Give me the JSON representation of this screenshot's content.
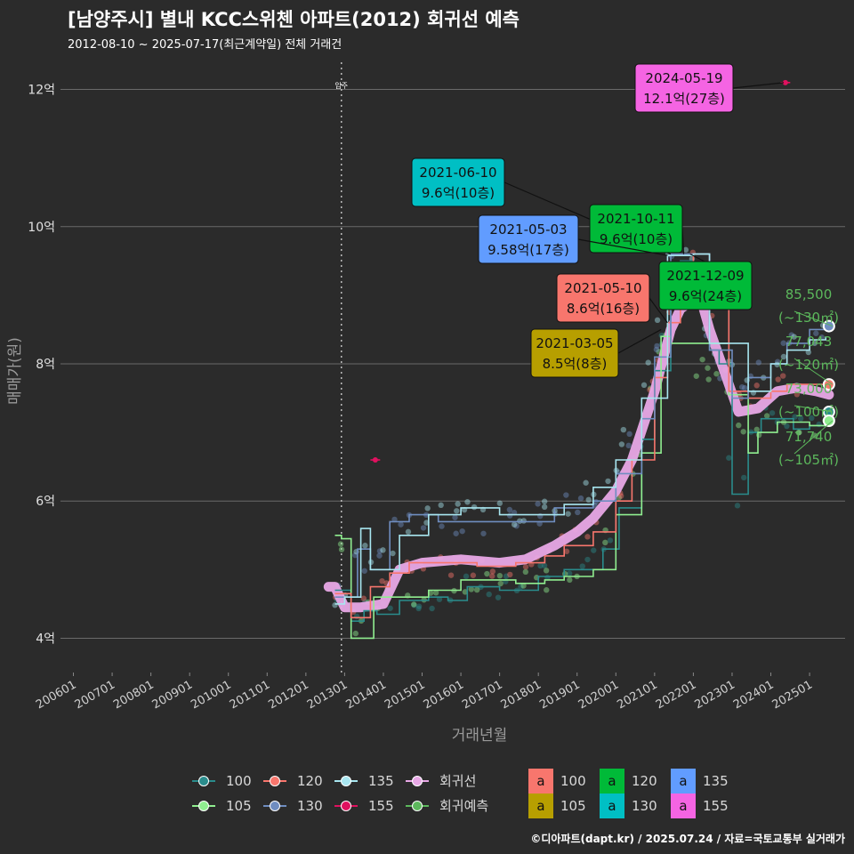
{
  "title": "[남양주시] 별내 KCC스위첸 아파트(2012) 회귀선 예측",
  "subtitle": "2012-08-10 ~ 2025-07-17(최근계약일) 전체 거래건",
  "credit": "©디아파트(dapt.kr) / 2025.07.24 / 자료=국토교통부 실거래가",
  "chart_data": {
    "type": "line",
    "xlabel": "거래년월",
    "ylabel": "매매가(원)",
    "x_ticks": [
      "200601",
      "200701",
      "200801",
      "200901",
      "201001",
      "201101",
      "201201",
      "201301",
      "201401",
      "201501",
      "201601",
      "201701",
      "201801",
      "201901",
      "202001",
      "202101",
      "202201",
      "202301",
      "202401",
      "202501"
    ],
    "y_ticks": [
      "4억",
      "6억",
      "8억",
      "10억",
      "12억"
    ],
    "y_tick_values": [
      4,
      6,
      8,
      10,
      12
    ],
    "xlim": [
      "2005-09",
      "2025-12"
    ],
    "ylim": [
      3.5,
      12.5
    ],
    "y_unit": "억",
    "grid": true,
    "vline": {
      "date": "2012-12",
      "label": "입주"
    },
    "series": [
      {
        "name": "100",
        "color": "#2a8c8c",
        "points": [
          [
            "2012-10",
            4.7
          ],
          [
            "2013-03",
            4.25
          ],
          [
            "2013-07",
            4.4
          ],
          [
            "2013-11",
            4.35
          ],
          [
            "2014-06",
            4.55
          ],
          [
            "2015-03",
            4.6
          ],
          [
            "2015-09",
            4.55
          ],
          [
            "2016-03",
            4.75
          ],
          [
            "2017-01",
            4.7
          ],
          [
            "2018-01",
            4.9
          ],
          [
            "2018-09",
            5.0
          ],
          [
            "2019-09",
            5.3
          ],
          [
            "2020-02",
            5.9
          ],
          [
            "2020-09",
            6.9
          ],
          [
            "2021-01",
            7.9
          ],
          [
            "2021-06",
            8.8
          ],
          [
            "2021-09",
            9.5
          ],
          [
            "2022-01",
            9.6
          ],
          [
            "2022-06",
            8.2
          ],
          [
            "2022-09",
            8.0
          ],
          [
            "2023-01",
            6.1
          ],
          [
            "2023-04",
            6.1
          ],
          [
            "2023-06",
            7.0
          ],
          [
            "2023-10",
            7.2
          ],
          [
            "2024-03",
            7.2
          ],
          [
            "2024-08",
            7.05
          ],
          [
            "2025-01",
            7.1
          ],
          [
            "2025-06",
            7.15
          ]
        ]
      },
      {
        "name": "105",
        "color": "#90ee90",
        "points": [
          [
            "2012-10",
            5.5
          ],
          [
            "2012-12",
            5.45
          ],
          [
            "2013-03",
            4.0
          ],
          [
            "2013-05",
            4.0
          ],
          [
            "2013-10",
            4.6
          ],
          [
            "2014-06",
            4.6
          ],
          [
            "2015-03",
            4.7
          ],
          [
            "2016-01",
            4.85
          ],
          [
            "2016-09",
            4.85
          ],
          [
            "2017-06",
            4.8
          ],
          [
            "2018-03",
            4.85
          ],
          [
            "2018-09",
            4.9
          ],
          [
            "2019-06",
            5.0
          ],
          [
            "2020-01",
            5.8
          ],
          [
            "2020-09",
            6.7
          ],
          [
            "2021-03",
            8.4
          ],
          [
            "2021-06",
            8.3
          ],
          [
            "2022-12",
            7.55
          ],
          [
            "2023-06",
            6.7
          ],
          [
            "2023-09",
            7.0
          ],
          [
            "2024-03",
            7.15
          ],
          [
            "2025-01",
            7.1
          ],
          [
            "2025-06",
            7.17
          ]
        ]
      },
      {
        "name": "120",
        "color": "#f8766d",
        "points": [
          [
            "2012-10",
            4.65
          ],
          [
            "2013-03",
            4.3
          ],
          [
            "2013-06",
            4.3
          ],
          [
            "2013-09",
            4.75
          ],
          [
            "2014-03",
            4.95
          ],
          [
            "2014-09",
            5.1
          ],
          [
            "2015-06",
            5.1
          ],
          [
            "2016-06",
            5.05
          ],
          [
            "2017-06",
            5.1
          ],
          [
            "2018-03",
            5.2
          ],
          [
            "2018-09",
            5.35
          ],
          [
            "2019-06",
            5.55
          ],
          [
            "2020-01",
            6.0
          ],
          [
            "2020-06",
            6.6
          ],
          [
            "2021-01",
            7.8
          ],
          [
            "2021-05",
            8.6
          ],
          [
            "2021-09",
            9.2
          ],
          [
            "2022-01",
            9.6
          ],
          [
            "2022-06",
            8.9
          ],
          [
            "2022-12",
            7.6
          ],
          [
            "2023-06",
            7.5
          ],
          [
            "2024-01",
            7.6
          ],
          [
            "2024-06",
            7.7
          ],
          [
            "2025-01",
            7.7
          ],
          [
            "2025-06",
            7.7
          ]
        ]
      },
      {
        "name": "130",
        "color": "#6f8dc0",
        "points": [
          [
            "2012-10",
            4.6
          ],
          [
            "2013-01",
            4.6
          ],
          [
            "2013-05",
            5.3
          ],
          [
            "2013-09",
            5.0
          ],
          [
            "2014-03",
            5.7
          ],
          [
            "2014-09",
            5.8
          ],
          [
            "2015-06",
            5.7
          ],
          [
            "2016-06",
            5.7
          ],
          [
            "2017-06",
            5.7
          ],
          [
            "2018-06",
            5.9
          ],
          [
            "2019-06",
            6.0
          ],
          [
            "2020-01",
            6.4
          ],
          [
            "2020-09",
            7.2
          ],
          [
            "2021-01",
            8.1
          ],
          [
            "2021-06",
            9.6
          ],
          [
            "2021-09",
            9.6
          ],
          [
            "2022-06",
            8.2
          ],
          [
            "2023-01",
            7.5
          ],
          [
            "2023-06",
            7.8
          ],
          [
            "2024-01",
            8.0
          ],
          [
            "2024-06",
            8.3
          ],
          [
            "2025-01",
            8.5
          ],
          [
            "2025-06",
            8.55
          ]
        ]
      },
      {
        "name": "135",
        "color": "#a8e6f0",
        "points": [
          [
            "2012-10",
            4.5
          ],
          [
            "2013-01",
            4.6
          ],
          [
            "2013-06",
            5.6
          ],
          [
            "2013-09",
            5.0
          ],
          [
            "2014-06",
            5.5
          ],
          [
            "2015-03",
            5.8
          ],
          [
            "2016-01",
            5.9
          ],
          [
            "2017-01",
            5.8
          ],
          [
            "2018-01",
            5.8
          ],
          [
            "2018-09",
            5.95
          ],
          [
            "2019-06",
            6.2
          ],
          [
            "2020-01",
            6.6
          ],
          [
            "2020-09",
            7.5
          ],
          [
            "2021-05",
            9.58
          ],
          [
            "2022-01",
            9.6
          ],
          [
            "2022-06",
            8.3
          ],
          [
            "2023-06",
            7.6
          ],
          [
            "2024-01",
            8.0
          ],
          [
            "2024-06",
            8.2
          ],
          [
            "2025-01",
            8.35
          ],
          [
            "2025-06",
            8.4
          ]
        ]
      },
      {
        "name": "155",
        "color": "#e0115f",
        "points": [
          [
            "2013-09",
            6.6
          ],
          [
            "2013-12",
            6.6
          ]
        ]
      },
      {
        "name": "155b",
        "color": "#e0115f",
        "points": [
          [
            "2021-02",
            12.0
          ],
          [
            "2021-04",
            12.0
          ]
        ]
      },
      {
        "name": "155c",
        "color": "#e0115f",
        "points": [
          [
            "2024-04",
            12.1
          ],
          [
            "2024-07",
            12.1
          ]
        ]
      },
      {
        "name": "회귀선",
        "color": "#e8a8e6",
        "points": [
          [
            "2012-08",
            4.75
          ],
          [
            "2012-10",
            4.75
          ],
          [
            "2013-01",
            4.45
          ],
          [
            "2013-06",
            4.45
          ],
          [
            "2014-01",
            4.5
          ],
          [
            "2014-06",
            5.0
          ],
          [
            "2015-01",
            5.1
          ],
          [
            "2016-01",
            5.15
          ],
          [
            "2017-01",
            5.1
          ],
          [
            "2017-09",
            5.15
          ],
          [
            "2018-06",
            5.35
          ],
          [
            "2019-01",
            5.55
          ],
          [
            "2019-06",
            5.75
          ],
          [
            "2020-01",
            6.15
          ],
          [
            "2020-06",
            6.6
          ],
          [
            "2021-01",
            7.6
          ],
          [
            "2021-06",
            8.5
          ],
          [
            "2021-09",
            8.8
          ],
          [
            "2021-12",
            8.9
          ],
          [
            "2022-03",
            9.0
          ],
          [
            "2022-06",
            8.5
          ],
          [
            "2022-12",
            7.7
          ],
          [
            "2023-03",
            7.3
          ],
          [
            "2023-09",
            7.35
          ],
          [
            "2024-03",
            7.6
          ],
          [
            "2024-09",
            7.65
          ],
          [
            "2025-03",
            7.6
          ],
          [
            "2025-07",
            7.55
          ]
        ]
      }
    ],
    "scatter_seed_note": "",
    "annotations": [
      {
        "date": "2021-06-10",
        "label_line1": "2021-06-10",
        "label_line2": "9.6억(10층)",
        "fill": "#00bfc4",
        "target": [
          "2021-06",
          9.6
        ]
      },
      {
        "date": "2021-10-11",
        "label_line1": "2021-10-11",
        "label_line2": "9.6억(10층)",
        "fill": "#00ba38",
        "target": [
          "2021-10",
          9.6
        ]
      },
      {
        "date": "2021-05-03",
        "label_line1": "2021-05-03",
        "label_line2": "9.58억(17층)",
        "fill": "#619cff",
        "target": [
          "2021-05",
          9.58
        ]
      },
      {
        "date": "2021-12-09",
        "label_line1": "2021-12-09",
        "label_line2": "9.6억(24층)",
        "fill": "#00ba38",
        "target": [
          "2021-12",
          9.6
        ]
      },
      {
        "date": "2021-05-10",
        "label_line1": "2021-05-10",
        "label_line2": "8.6억(16층)",
        "fill": "#f8766d",
        "target": [
          "2021-05",
          8.6
        ]
      },
      {
        "date": "2021-03-05",
        "label_line1": "2021-03-05",
        "label_line2": "8.5억(8층)",
        "fill": "#b79f00",
        "target": [
          "2021-03",
          8.5
        ]
      },
      {
        "date": "2024-05-19",
        "label_line1": "2024-05-19",
        "label_line2": "12.1억(27층)",
        "fill": "#f564e3",
        "target": [
          "2024-05",
          12.1
        ]
      }
    ],
    "predictions": [
      {
        "value": "85,500",
        "area": "(~130㎡)",
        "color": "#6f8dc0",
        "y": 8.55
      },
      {
        "value": "77,043",
        "area": "(~120㎡)",
        "color": "#f8766d",
        "y": 7.7
      },
      {
        "value": "73,000",
        "area": "(~100㎡)",
        "color": "#2a8c8c",
        "y": 7.3
      },
      {
        "value": "71,740",
        "area": "(~105㎡)",
        "color": "#90ee90",
        "y": 7.17
      }
    ],
    "legend": {
      "placement": "bottom",
      "lines": [
        {
          "label": "100",
          "color": "#2a8c8c"
        },
        {
          "label": "120",
          "color": "#f8766d"
        },
        {
          "label": "135",
          "color": "#a8e6f0"
        },
        {
          "label": "회귀선",
          "color": "#e8a8e6"
        },
        {
          "label": "105",
          "color": "#90ee90"
        },
        {
          "label": "130",
          "color": "#6f8dc0"
        },
        {
          "label": "155",
          "color": "#e0115f"
        },
        {
          "label": "회귀예측",
          "color": "#5cb85c"
        }
      ],
      "boxes": [
        {
          "label": "100",
          "color": "#f8766d"
        },
        {
          "label": "120",
          "color": "#00ba38"
        },
        {
          "label": "135",
          "color": "#619cff"
        },
        {
          "label": "105",
          "color": "#b79f00"
        },
        {
          "label": "130",
          "color": "#00bfc4"
        },
        {
          "label": "155",
          "color": "#f564e3"
        }
      ],
      "box_glyph": "a"
    }
  }
}
